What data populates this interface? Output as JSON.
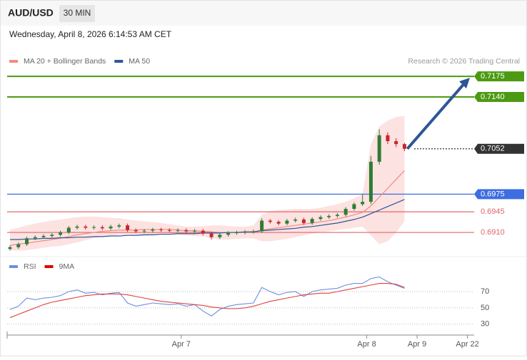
{
  "header": {
    "symbol": "AUD/USD",
    "interval": "30 MIN",
    "timestamp": "Wednesday, April 8, 2026 6:14:53 AM CET",
    "credit": "Research © 2026 Trading Central"
  },
  "chart_data": [
    {
      "type": "candlestick",
      "legend": [
        {
          "name": "MA 20 + Bollinger Bands",
          "color": "#f28b82"
        },
        {
          "name": "MA 50",
          "color": "#2f5597"
        }
      ],
      "xlim": [
        -0.34,
        55.3
      ],
      "xticks": [
        {
          "value": 20.4,
          "label": "Apr 7"
        },
        {
          "value": 42.5,
          "label": "Apr 8"
        },
        {
          "value": 48.5,
          "label": "Apr 9"
        },
        {
          "value": 54.5,
          "label": "Apr 22"
        }
      ],
      "ylim": [
        0.6875,
        0.7232
      ],
      "up_color": "#2e7d32",
      "down_color": "#c62828",
      "open": [
        0.6882,
        0.6885,
        0.689,
        0.69,
        0.6902,
        0.6904,
        0.6906,
        0.691,
        0.6918,
        0.692,
        0.6918,
        0.6919,
        0.6917,
        0.692,
        0.6922,
        0.6914,
        0.6912,
        0.6913,
        0.6915,
        0.6914,
        0.6913,
        0.6914,
        0.6912,
        0.6913,
        0.6908,
        0.6902,
        0.6906,
        0.6909,
        0.691,
        0.6911,
        0.6912,
        0.693,
        0.6928,
        0.6925,
        0.693,
        0.6932,
        0.6926,
        0.6933,
        0.6936,
        0.6938,
        0.694,
        0.695,
        0.6958,
        0.6962,
        0.703,
        0.7075,
        0.7065,
        0.706
      ],
      "high": [
        0.6888,
        0.6893,
        0.6903,
        0.6905,
        0.6907,
        0.6909,
        0.6913,
        0.6921,
        0.6923,
        0.6923,
        0.6922,
        0.6922,
        0.6923,
        0.6925,
        0.6925,
        0.6917,
        0.6916,
        0.6918,
        0.6918,
        0.6917,
        0.6917,
        0.6917,
        0.6916,
        0.6916,
        0.6911,
        0.6909,
        0.6912,
        0.6913,
        0.6914,
        0.6915,
        0.6934,
        0.6933,
        0.6931,
        0.6933,
        0.6935,
        0.6935,
        0.6936,
        0.6939,
        0.6941,
        0.6943,
        0.6953,
        0.6961,
        0.6975,
        0.704,
        0.7085,
        0.708,
        0.707,
        0.7062
      ],
      "low": [
        0.6879,
        0.6882,
        0.6887,
        0.6897,
        0.6899,
        0.6901,
        0.6903,
        0.6907,
        0.6915,
        0.6915,
        0.6915,
        0.6914,
        0.6914,
        0.6917,
        0.6911,
        0.6909,
        0.6909,
        0.691,
        0.6911,
        0.691,
        0.691,
        0.6909,
        0.6909,
        0.6905,
        0.6898,
        0.6899,
        0.6903,
        0.6906,
        0.6907,
        0.6908,
        0.6909,
        0.6925,
        0.6922,
        0.6922,
        0.6927,
        0.6923,
        0.6923,
        0.693,
        0.6933,
        0.6935,
        0.6937,
        0.6947,
        0.6955,
        0.6958,
        0.7025,
        0.706,
        0.7055,
        0.7048
      ],
      "close": [
        0.6885,
        0.689,
        0.69,
        0.6902,
        0.6904,
        0.6906,
        0.691,
        0.6918,
        0.692,
        0.6918,
        0.6919,
        0.6917,
        0.692,
        0.6922,
        0.6914,
        0.6912,
        0.6913,
        0.6915,
        0.6914,
        0.6913,
        0.6914,
        0.6912,
        0.6913,
        0.6908,
        0.6902,
        0.6906,
        0.6909,
        0.691,
        0.6911,
        0.6912,
        0.693,
        0.6928,
        0.6925,
        0.693,
        0.6932,
        0.6926,
        0.6933,
        0.6936,
        0.6938,
        0.694,
        0.695,
        0.6958,
        0.6962,
        0.703,
        0.7075,
        0.7065,
        0.706,
        0.7052
      ],
      "band": {
        "color": "#fde2e2",
        "upper": [
          0.6915,
          0.6918,
          0.6922,
          0.6925,
          0.6928,
          0.693,
          0.6932,
          0.6934,
          0.6936,
          0.6937,
          0.6937,
          0.6936,
          0.6935,
          0.6934,
          0.6932,
          0.693,
          0.6929,
          0.6928,
          0.6926,
          0.6924,
          0.6922,
          0.692,
          0.692,
          0.6921,
          0.6922,
          0.6922,
          0.6921,
          0.692,
          0.692,
          0.6922,
          0.694,
          0.6946,
          0.6948,
          0.6949,
          0.695,
          0.695,
          0.695,
          0.6952,
          0.6955,
          0.6958,
          0.6962,
          0.6968,
          0.6975,
          0.706,
          0.709,
          0.71,
          0.7106,
          0.7108
        ],
        "lower": [
          0.688,
          0.6879,
          0.688,
          0.6882,
          0.6884,
          0.6886,
          0.6887,
          0.689,
          0.6893,
          0.6897,
          0.69,
          0.6903,
          0.6905,
          0.6906,
          0.6905,
          0.6904,
          0.6904,
          0.6905,
          0.6906,
          0.6906,
          0.6906,
          0.6905,
          0.6904,
          0.6903,
          0.69,
          0.6898,
          0.6898,
          0.6899,
          0.69,
          0.69,
          0.6895,
          0.6895,
          0.6897,
          0.6899,
          0.6902,
          0.6905,
          0.6908,
          0.691,
          0.6912,
          0.6914,
          0.6916,
          0.6918,
          0.692,
          0.6905,
          0.689,
          0.6895,
          0.691,
          0.6929
        ]
      },
      "series": [
        {
          "color": "#f28b82",
          "values": [
            0.6888,
            0.689,
            0.6892,
            0.6894,
            0.6896,
            0.6898,
            0.69,
            0.6903,
            0.6906,
            0.6908,
            0.691,
            0.6912,
            0.6913,
            0.6914,
            0.6914,
            0.6914,
            0.6915,
            0.6915,
            0.6915,
            0.6915,
            0.6914,
            0.6913,
            0.6913,
            0.6912,
            0.6911,
            0.691,
            0.691,
            0.691,
            0.691,
            0.6911,
            0.6914,
            0.6916,
            0.6918,
            0.692,
            0.6922,
            0.6924,
            0.6926,
            0.6928,
            0.693,
            0.6933,
            0.6936,
            0.694,
            0.6944,
            0.6955,
            0.697,
            0.6985,
            0.7,
            0.7015
          ]
        },
        {
          "color": "#2f5597",
          "values": [
            0.6898,
            0.6898,
            0.6899,
            0.6899,
            0.69,
            0.69,
            0.6901,
            0.6901,
            0.6902,
            0.6902,
            0.6903,
            0.6903,
            0.6904,
            0.6904,
            0.6905,
            0.6905,
            0.6906,
            0.6906,
            0.6907,
            0.6907,
            0.6908,
            0.6908,
            0.6908,
            0.6909,
            0.6909,
            0.6909,
            0.691,
            0.691,
            0.6911,
            0.6911,
            0.6913,
            0.6914,
            0.6915,
            0.6916,
            0.6917,
            0.6919,
            0.692,
            0.6922,
            0.6924,
            0.6926,
            0.6929,
            0.6932,
            0.6936,
            0.6942,
            0.6948,
            0.6954,
            0.696,
            0.6966
          ]
        }
      ],
      "levels": [
        {
          "price": 0.7175,
          "color": "#4c9a13",
          "line": "solid",
          "tag": "box"
        },
        {
          "price": {
            "value": 0.714,
            "label": "0.7140"
          },
          "color": "#4c9a13",
          "line": "solid",
          "tag": "box"
        },
        {
          "price": 0.7052,
          "color": "#333333",
          "line": "dotted",
          "tag": "box"
        },
        {
          "price": 0.6975,
          "color": "#3d6ee0",
          "line": "solid",
          "tag": "box"
        },
        {
          "price": 0.6945,
          "color": "#e06666",
          "line": "solid",
          "tag": "text"
        },
        {
          "price": {
            "value": 0.691,
            "label": "0.6910"
          },
          "color": "#e06666",
          "line": "solid",
          "tag": "text"
        }
      ],
      "arrow_color": "#2f5597"
    },
    {
      "type": "line",
      "legend": [
        {
          "name": "RSI",
          "color": "#6d8fe0"
        },
        {
          "name": "9MA",
          "color": "#e00000"
        }
      ],
      "ylim": [
        21,
        91
      ],
      "yticks": [
        70,
        50,
        30
      ],
      "series": [
        {
          "color": "#6d8fe0",
          "values": [
            48,
            52,
            62,
            60,
            62,
            63,
            65,
            70,
            72,
            68,
            69,
            66,
            68,
            69,
            56,
            52,
            54,
            56,
            55,
            54,
            55,
            52,
            54,
            46,
            40,
            48,
            52,
            54,
            55,
            56,
            75,
            70,
            66,
            69,
            70,
            64,
            70,
            72,
            73,
            74,
            78,
            80,
            80,
            86,
            88,
            82,
            78,
            74
          ]
        },
        {
          "color": "#e04040",
          "values": [
            38,
            42,
            46,
            50,
            54,
            57,
            59,
            61,
            63,
            65,
            66,
            67,
            67,
            67,
            66,
            64,
            62,
            60,
            58,
            57,
            56,
            55,
            54,
            53,
            51,
            50,
            49,
            49,
            50,
            52,
            55,
            58,
            60,
            62,
            64,
            66,
            67,
            68,
            68,
            70,
            72,
            74,
            76,
            78,
            80,
            80,
            79,
            75
          ]
        }
      ]
    }
  ]
}
